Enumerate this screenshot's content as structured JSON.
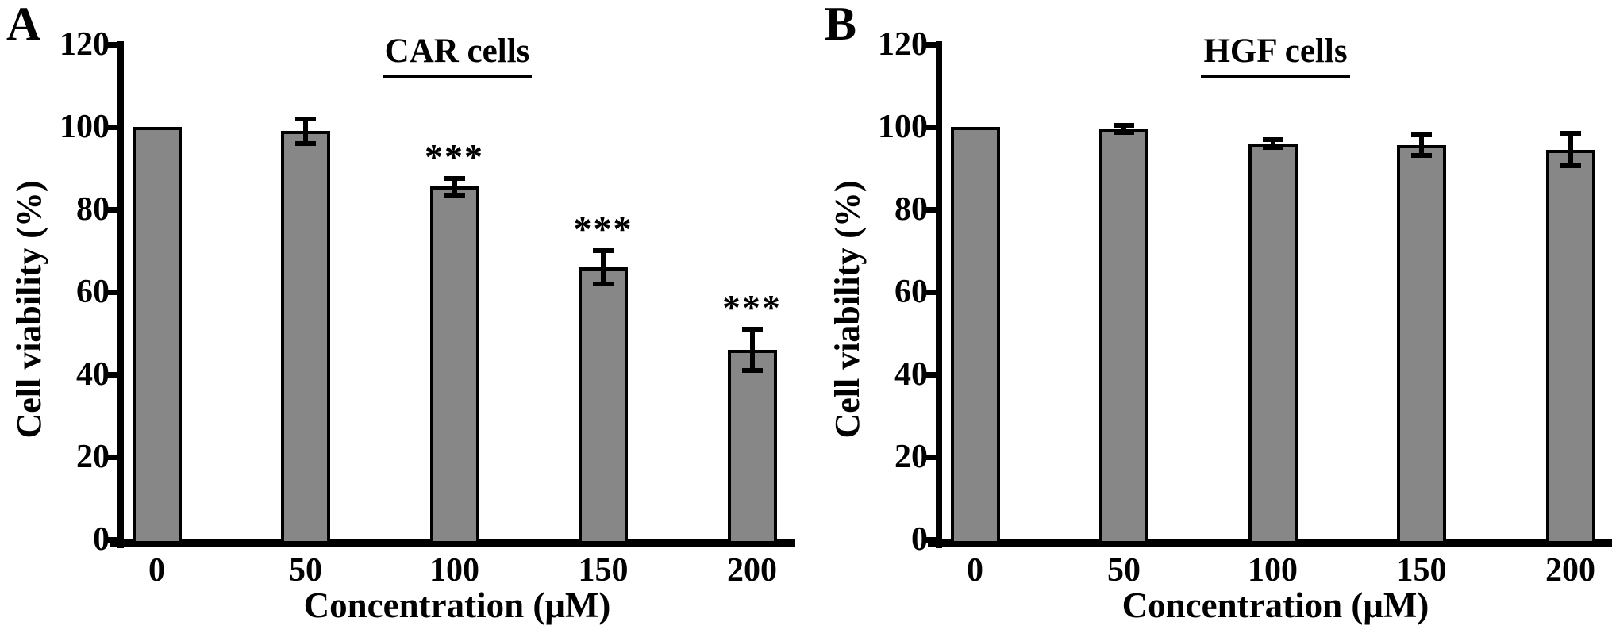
{
  "figure": {
    "panels": [
      {
        "letter": "A"
      },
      {
        "letter": "B"
      }
    ]
  },
  "chart_data": [
    {
      "type": "bar",
      "panel_label": "A",
      "title": "CAR cells",
      "xlabel": "Concentration (μM)",
      "ylabel": "Cell viability (%)",
      "categories": [
        "0",
        "50",
        "100",
        "150",
        "200"
      ],
      "values": [
        100,
        99,
        85.5,
        66,
        46
      ],
      "errors": [
        0,
        3,
        2,
        4,
        5
      ],
      "significance": [
        "",
        "",
        "***",
        "***",
        "***"
      ],
      "ylim": [
        0,
        120
      ],
      "yticks": [
        0,
        20,
        40,
        60,
        80,
        100,
        120
      ],
      "grid": false,
      "legend": "none",
      "bar_fill": "#878787",
      "bar_edge": "#000000",
      "axis_color": "#000000"
    },
    {
      "type": "bar",
      "panel_label": "B",
      "title": "HGF cells",
      "xlabel": "Concentration (μM)",
      "ylabel": "Cell viability (%)",
      "categories": [
        "0",
        "50",
        "100",
        "150",
        "200"
      ],
      "values": [
        100,
        99.5,
        96,
        95.5,
        94.5
      ],
      "errors": [
        0,
        0.8,
        1,
        2.5,
        4
      ],
      "significance": [
        "",
        "",
        "",
        "",
        ""
      ],
      "ylim": [
        0,
        120
      ],
      "yticks": [
        0,
        20,
        40,
        60,
        80,
        100,
        120
      ],
      "grid": false,
      "legend": "none",
      "bar_fill": "#878787",
      "bar_edge": "#000000",
      "axis_color": "#000000"
    }
  ]
}
